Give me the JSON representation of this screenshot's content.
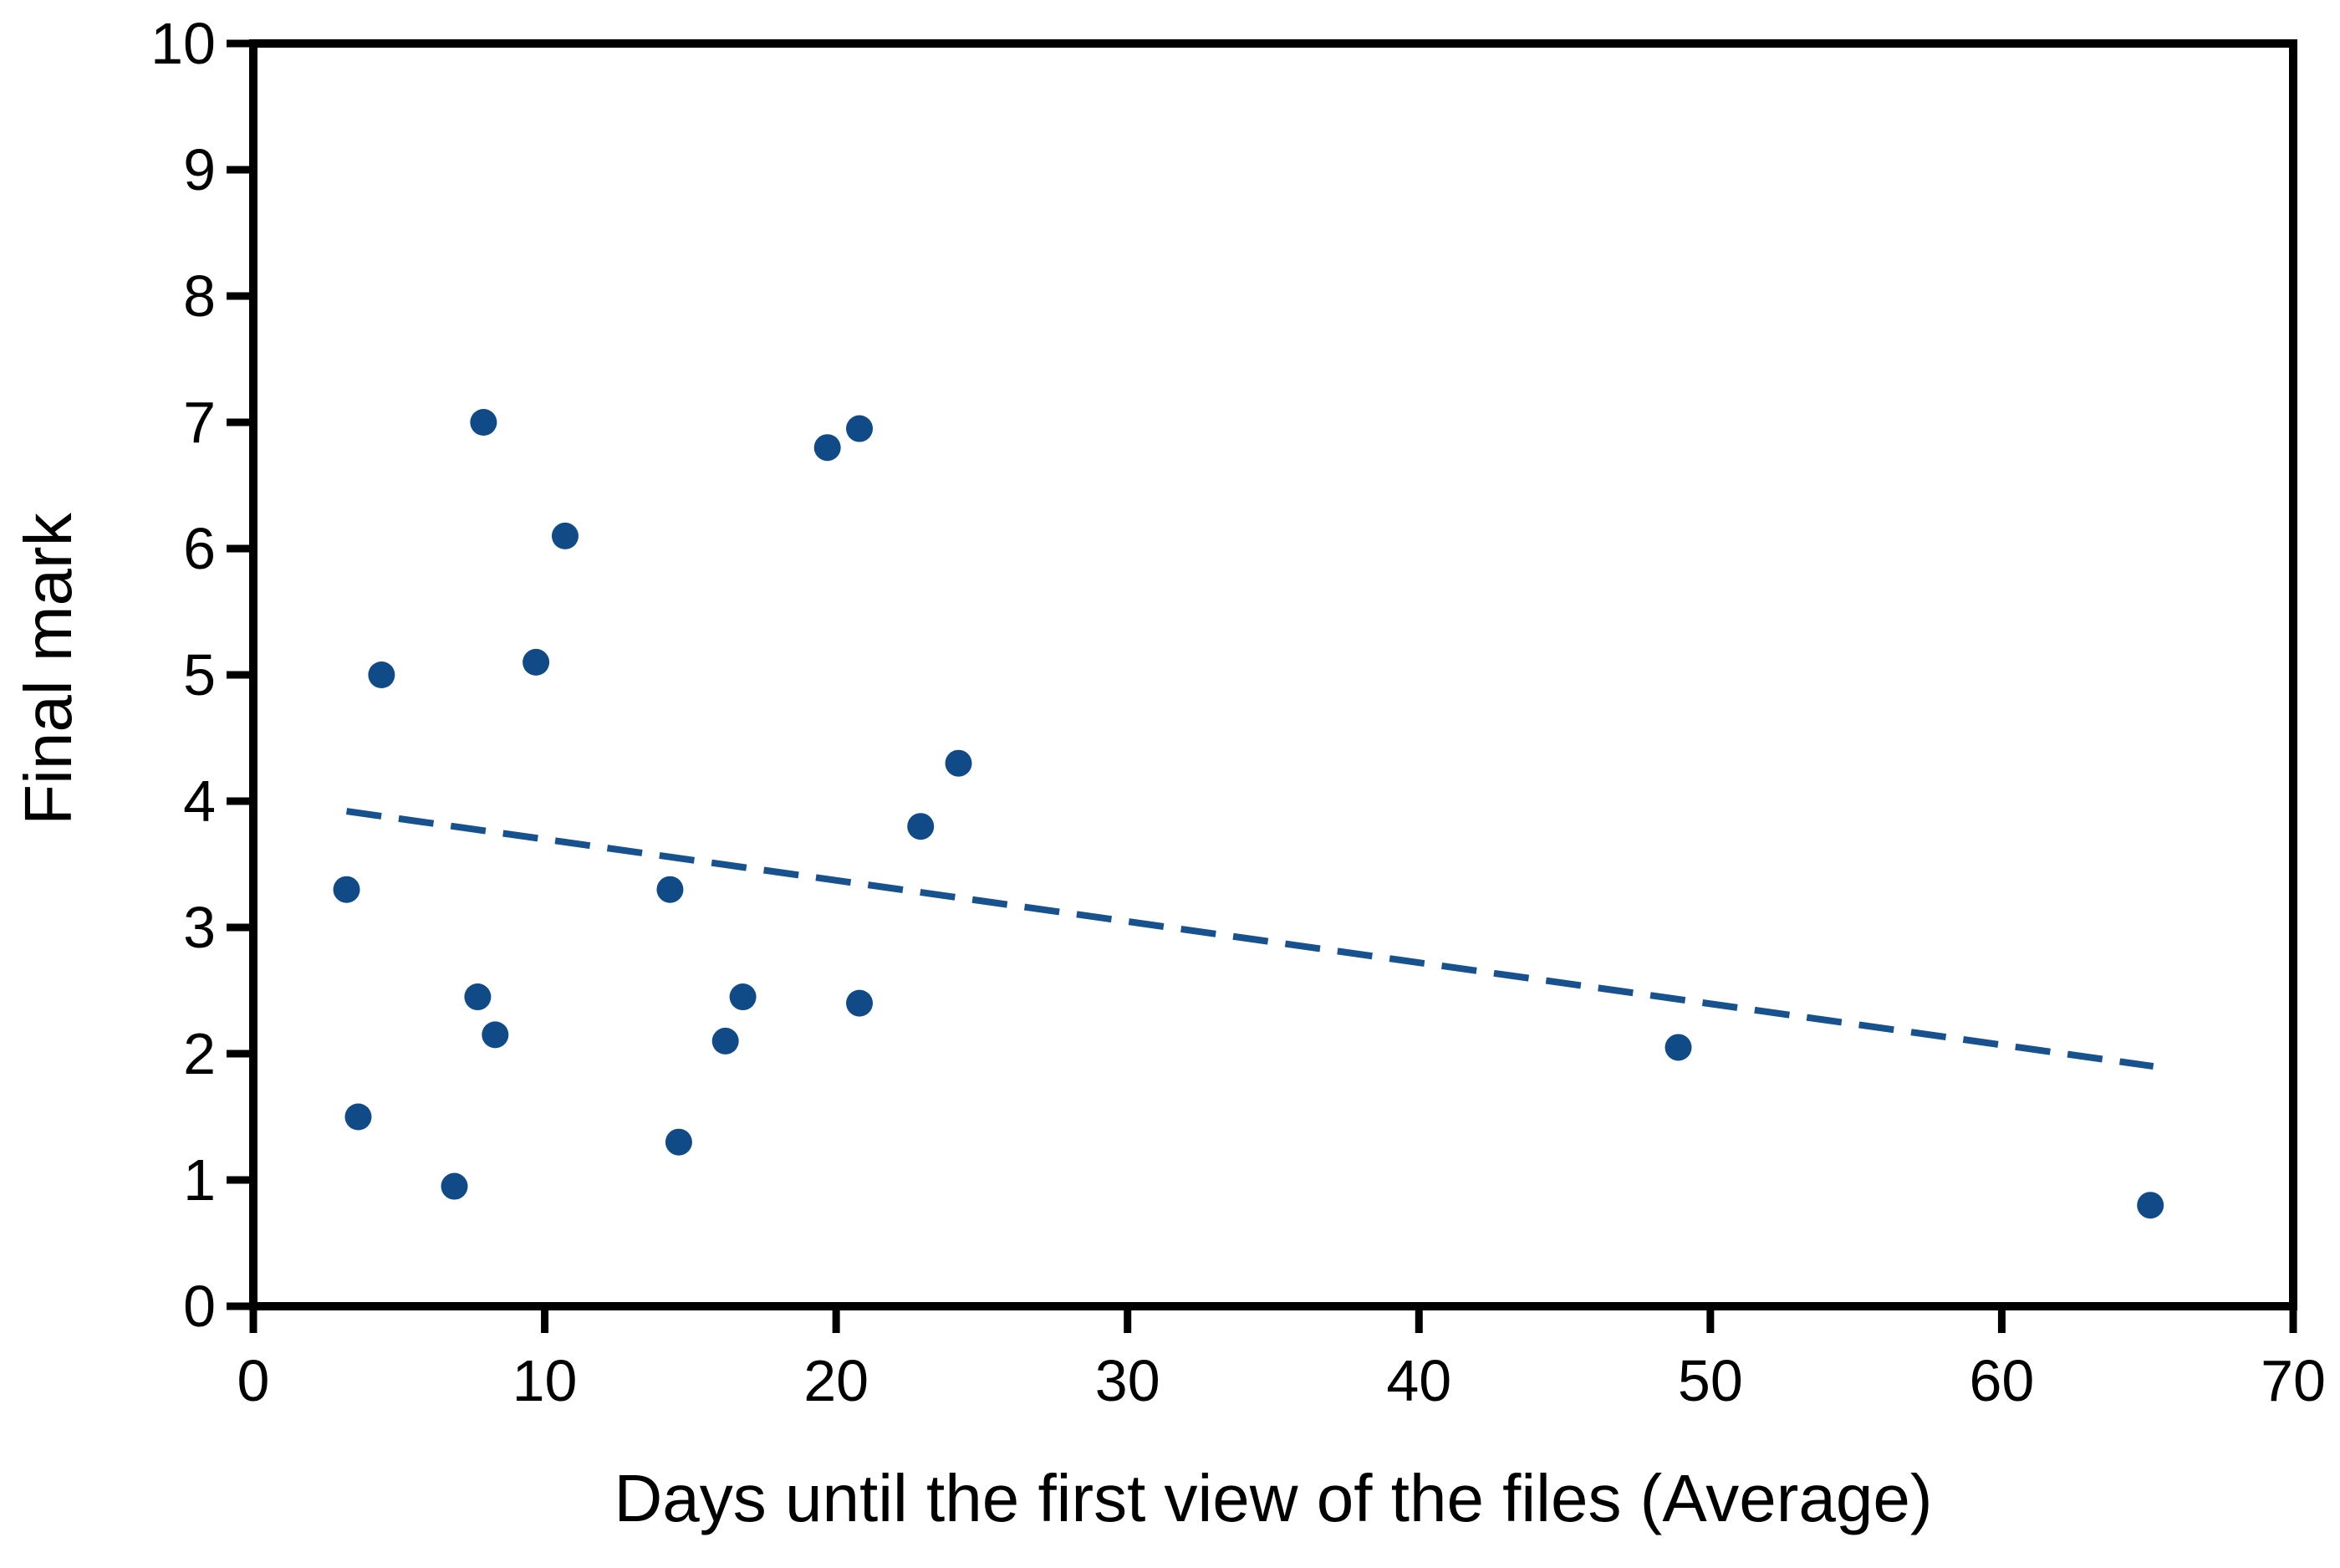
{
  "figure": {
    "background_color": "#ffffff",
    "axis_color": "#000000",
    "text_color": "#000000"
  },
  "chart_data": {
    "type": "scatter",
    "title": "",
    "xlabel": "Days until the first view of the files (Average)",
    "ylabel": "Final mark",
    "xlim": [
      0,
      70
    ],
    "ylim": [
      0,
      10
    ],
    "x_ticks": [
      0,
      10,
      20,
      30,
      40,
      50,
      60,
      70
    ],
    "y_ticks": [
      0,
      1,
      2,
      3,
      4,
      5,
      6,
      7,
      8,
      9,
      10
    ],
    "grid": false,
    "legend": false,
    "frame": "full-box",
    "point_color": "#114b87",
    "trend_color": "#17528f",
    "points": [
      {
        "x": 3.2,
        "y": 3.3
      },
      {
        "x": 3.6,
        "y": 1.5
      },
      {
        "x": 4.4,
        "y": 5.0
      },
      {
        "x": 6.9,
        "y": 0.95
      },
      {
        "x": 7.7,
        "y": 2.45
      },
      {
        "x": 7.9,
        "y": 7.0
      },
      {
        "x": 8.3,
        "y": 2.15
      },
      {
        "x": 9.7,
        "y": 5.1
      },
      {
        "x": 10.7,
        "y": 6.1
      },
      {
        "x": 14.3,
        "y": 3.3
      },
      {
        "x": 14.6,
        "y": 1.3
      },
      {
        "x": 16.2,
        "y": 2.1
      },
      {
        "x": 16.8,
        "y": 2.45
      },
      {
        "x": 19.7,
        "y": 6.8
      },
      {
        "x": 20.8,
        "y": 6.95
      },
      {
        "x": 20.8,
        "y": 2.4
      },
      {
        "x": 22.9,
        "y": 3.8
      },
      {
        "x": 24.2,
        "y": 4.3
      },
      {
        "x": 48.9,
        "y": 2.05
      },
      {
        "x": 65.1,
        "y": 0.8
      }
    ],
    "trendline": {
      "style": "dashed",
      "x1": 3.2,
      "y1": 3.92,
      "x2": 65.2,
      "y2": 1.9
    }
  }
}
